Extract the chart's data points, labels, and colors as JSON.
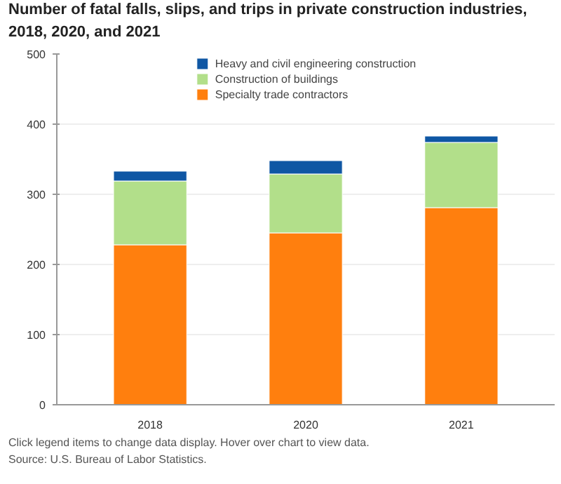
{
  "chart_data": {
    "type": "bar",
    "title": "Number of fatal falls, slips, and trips in private construction industries, 2018, 2020, and 2021",
    "categories": [
      "2018",
      "2020",
      "2021"
    ],
    "stacked": true,
    "series": [
      {
        "name": "Specialty trade contractors",
        "color": "#ff7f0e",
        "values": [
          228,
          245,
          281
        ]
      },
      {
        "name": "Construction of buildings",
        "color": "#b2df8a",
        "values": [
          91,
          84,
          93
        ]
      },
      {
        "name": "Heavy and civil engineering construction",
        "color": "#0f57a4",
        "values": [
          14,
          19,
          9
        ]
      }
    ],
    "ylim": [
      0,
      500
    ],
    "yticks": [
      0,
      100,
      200,
      300,
      400,
      500
    ],
    "grid": "y",
    "legend": "top",
    "annotations": [
      "Click legend items to change data display. Hover over chart to view data.",
      "Source: U.S. Bureau of Labor Statistics."
    ]
  }
}
